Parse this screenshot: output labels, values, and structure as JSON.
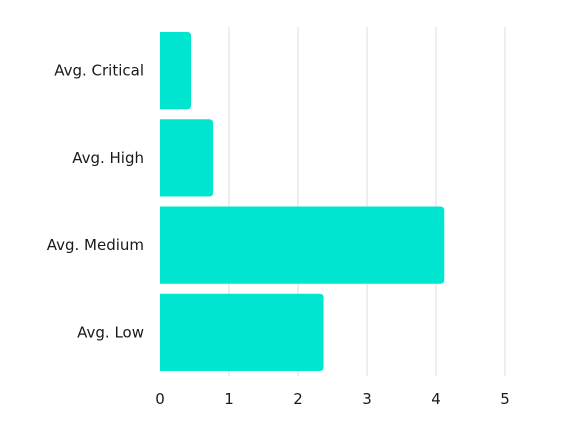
{
  "chart_data": {
    "type": "bar",
    "orientation": "horizontal",
    "categories": [
      "Avg. Critical",
      "Avg. High",
      "Avg. Medium",
      "Avg. Low"
    ],
    "values": [
      0.45,
      0.77,
      4.12,
      2.37
    ],
    "xlim": [
      0,
      5
    ],
    "x_ticks": [
      "0",
      "1",
      "2",
      "3",
      "4",
      "5"
    ],
    "grid": true,
    "title": "",
    "xlabel": "",
    "ylabel": "",
    "bar_color": "#00e5cf"
  }
}
